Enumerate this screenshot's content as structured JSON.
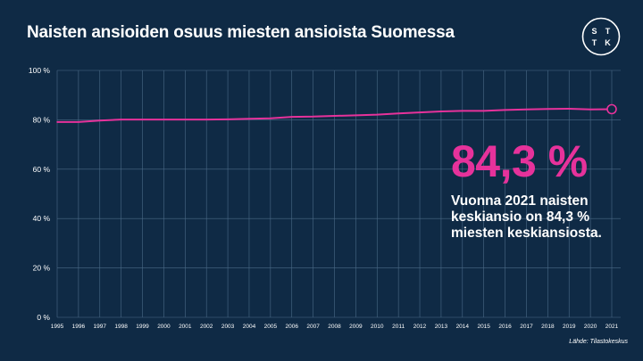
{
  "header": {
    "title": "Naisten ansioiden osuus miesten ansioista Suomessa",
    "logo_letters": [
      "S",
      "T",
      "T",
      "K"
    ]
  },
  "highlight": {
    "value": "84,3 %",
    "caption": "Vuonna 2021 naisten keskiansio on 84,3 % miesten keskiansiosta."
  },
  "source": "Lähde: Tilastokeskus",
  "colors": {
    "background": "#0f2a45",
    "line": "#e6329b",
    "grid": "#4b6a87"
  },
  "chart_data": {
    "type": "line",
    "title": "Naisten ansioiden osuus miesten ansioista Suomessa",
    "xlabel": "",
    "ylabel": "",
    "x": [
      1995,
      1996,
      1997,
      1998,
      1999,
      2000,
      2001,
      2002,
      2003,
      2004,
      2005,
      2006,
      2007,
      2008,
      2009,
      2010,
      2011,
      2012,
      2013,
      2014,
      2015,
      2016,
      2017,
      2018,
      2019,
      2020,
      2021
    ],
    "series": [
      {
        "values": [
          79.1,
          79.1,
          79.7,
          80.1,
          80.1,
          80.1,
          80.1,
          80.1,
          80.2,
          80.4,
          80.6,
          81.2,
          81.3,
          81.6,
          81.8,
          82.1,
          82.6,
          83.0,
          83.4,
          83.6,
          83.6,
          84.0,
          84.2,
          84.4,
          84.5,
          84.2,
          84.3
        ]
      }
    ],
    "ylim": [
      0,
      100
    ],
    "y_ticks": [
      "0 %",
      "20 %",
      "40 %",
      "60 %",
      "80 %",
      "100 %"
    ],
    "y_tick_values": [
      0,
      20,
      40,
      60,
      80,
      100
    ],
    "grid": true,
    "legend": "none"
  }
}
